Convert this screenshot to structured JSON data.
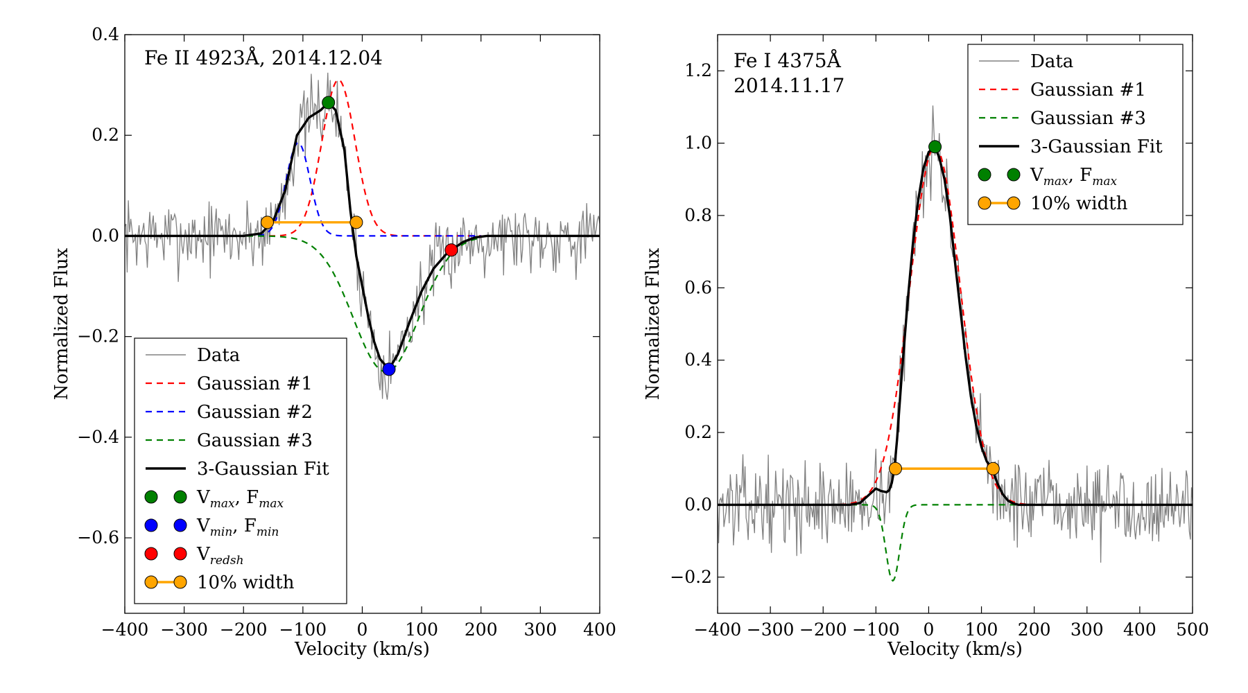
{
  "chart_data": [
    {
      "type": "line",
      "annotation": [
        "Fe II 4923Å, 2014.12.04"
      ],
      "xlabel": "Velocity (km/s)",
      "ylabel": "Normalized Flux",
      "xlim": [
        -400,
        400
      ],
      "ylim": [
        -0.75,
        0.4
      ],
      "xticks": [
        -400,
        -300,
        -200,
        -100,
        0,
        100,
        200,
        300,
        400
      ],
      "xtick_labels": [
        "−400",
        "−300",
        "−200",
        "−100",
        "0",
        "100",
        "200",
        "300",
        "400"
      ],
      "yticks": [
        0.4,
        0.2,
        0.0,
        -0.2,
        -0.4,
        -0.6
      ],
      "ytick_labels": [
        "0.4",
        "0.2",
        "0.0",
        "−0.2",
        "−0.4",
        "−0.6"
      ],
      "legend_position": "lower-left",
      "noise": {
        "amplitude": 0.055,
        "seed": 7
      },
      "gaussians": {
        "g1": {
          "amp": 0.31,
          "mu": -40,
          "sigma": 28
        },
        "g2": {
          "amp": 0.185,
          "mu": -108,
          "sigma": 20
        },
        "g3": {
          "amp": -0.27,
          "mu": 40,
          "sigma": 55
        }
      },
      "fit": {
        "x": [
          -400,
          -200,
          -170,
          -150,
          -130,
          -110,
          -90,
          -70,
          -57,
          -45,
          -30,
          -20,
          -10,
          0,
          10,
          20,
          30,
          45,
          60,
          80,
          100,
          120,
          140,
          150,
          170,
          190,
          210,
          240,
          400
        ],
        "y": [
          0,
          0,
          0.005,
          0.03,
          0.09,
          0.2,
          0.235,
          0.25,
          0.265,
          0.25,
          0.17,
          0.05,
          -0.04,
          -0.1,
          -0.16,
          -0.21,
          -0.245,
          -0.265,
          -0.235,
          -0.17,
          -0.11,
          -0.065,
          -0.038,
          -0.028,
          -0.012,
          -0.003,
          0,
          0,
          0
        ]
      },
      "markers": {
        "max": {
          "x": -57,
          "y": 0.265,
          "color": "#008000"
        },
        "min": {
          "x": 45,
          "y": -0.265,
          "color": "#0000ff"
        },
        "redsh": {
          "x": 150,
          "y": -0.028,
          "color": "#ff0000"
        },
        "width10": {
          "x1": -160,
          "x2": -10,
          "y": 0.027,
          "color": "#ffa500"
        }
      },
      "series_colors": {
        "data": "#808080",
        "g1": "#ff0000",
        "g2": "#0000ff",
        "g3": "#008000",
        "fit": "#000000"
      },
      "legend": [
        {
          "kind": "data",
          "label": "Data"
        },
        {
          "kind": "g1",
          "label": "Gaussian #1"
        },
        {
          "kind": "g2",
          "label": "Gaussian #2"
        },
        {
          "kind": "g3",
          "label": "Gaussian #3"
        },
        {
          "kind": "fit",
          "label": "3-Gaussian Fit"
        },
        {
          "kind": "dot-green",
          "label": "V",
          "sub": "max",
          "label2": ", F",
          "sub2": "max"
        },
        {
          "kind": "dot-blue",
          "label": "V",
          "sub": "min",
          "label2": ", F",
          "sub2": "min"
        },
        {
          "kind": "dot-red",
          "label": "V",
          "sub": "redsh"
        },
        {
          "kind": "width",
          "label": "10% width"
        }
      ]
    },
    {
      "type": "line",
      "annotation": [
        "Fe I 4375Å",
        "2014.11.17"
      ],
      "xlabel": "Velocity (km/s)",
      "ylabel": "Normalized Flux",
      "xlim": [
        -400,
        500
      ],
      "ylim": [
        -0.3,
        1.3
      ],
      "xticks": [
        -400,
        -300,
        -200,
        -100,
        0,
        100,
        200,
        300,
        400,
        500
      ],
      "xtick_labels": [
        "−400",
        "−300",
        "−200",
        "−100",
        "0",
        "100",
        "200",
        "300",
        "400",
        "500"
      ],
      "yticks": [
        1.2,
        1.0,
        0.8,
        0.6,
        0.4,
        0.2,
        0.0,
        -0.2
      ],
      "ytick_labels": [
        "1.2",
        "1.0",
        "0.8",
        "0.6",
        "0.4",
        "0.2",
        "0.0",
        "−0.2"
      ],
      "legend_position": "top-right",
      "noise": {
        "amplitude": 0.085,
        "seed": 13
      },
      "gaussians": {
        "g1": {
          "amp": 0.99,
          "mu": 12,
          "sigma": 48
        },
        "g3": {
          "amp": -0.21,
          "mu": -68,
          "sigma": 13
        }
      },
      "fit": {
        "x": [
          -400,
          -150,
          -130,
          -115,
          -100,
          -90,
          -80,
          -75,
          -70,
          -65,
          -60,
          -50,
          -40,
          -30,
          -20,
          -10,
          0,
          12,
          20,
          30,
          40,
          50,
          60,
          70,
          80,
          90,
          100,
          110,
          120,
          130,
          140,
          150,
          160,
          170,
          500
        ],
        "y": [
          0,
          0,
          0.005,
          0.025,
          0.045,
          0.038,
          0.035,
          0.04,
          0.06,
          0.1,
          0.18,
          0.38,
          0.56,
          0.72,
          0.84,
          0.93,
          0.975,
          0.99,
          0.96,
          0.9,
          0.8,
          0.67,
          0.54,
          0.41,
          0.3,
          0.22,
          0.16,
          0.12,
          0.1,
          0.06,
          0.03,
          0.012,
          0.004,
          0,
          0
        ]
      },
      "markers": {
        "max": {
          "x": 12,
          "y": 0.99,
          "color": "#008000"
        },
        "width10": {
          "x1": -63,
          "x2": 122,
          "y": 0.1,
          "color": "#ffa500"
        }
      },
      "series_colors": {
        "data": "#808080",
        "g1": "#ff0000",
        "g3": "#008000",
        "fit": "#000000"
      },
      "legend": [
        {
          "kind": "data",
          "label": "Data"
        },
        {
          "kind": "g1",
          "label": "Gaussian #1"
        },
        {
          "kind": "g3",
          "label": "Gaussian #3"
        },
        {
          "kind": "fit",
          "label": "3-Gaussian Fit"
        },
        {
          "kind": "dot-green",
          "label": "V",
          "sub": "max",
          "label2": ", F",
          "sub2": "max"
        },
        {
          "kind": "width",
          "label": "10% width"
        }
      ]
    }
  ]
}
